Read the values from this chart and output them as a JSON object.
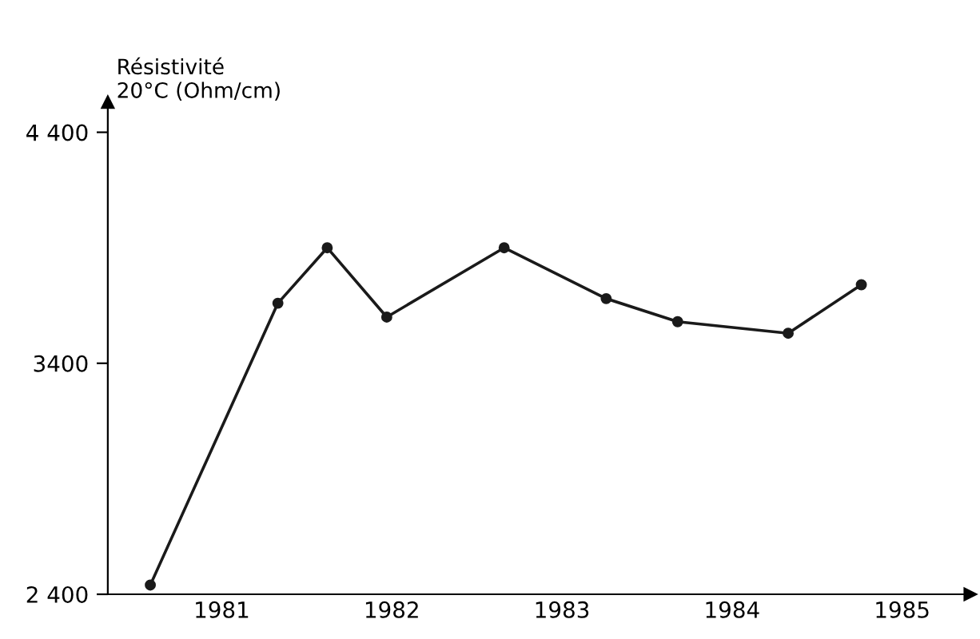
{
  "chart_data": {
    "type": "line",
    "ylabel": "Résistivité\n20°C (Ohm/cm)",
    "x": [
      1980.58,
      1981.33,
      1981.62,
      1981.97,
      1982.66,
      1983.26,
      1983.68,
      1984.33,
      1984.76
    ],
    "series": [
      {
        "color": "#1a1a1a",
        "values": [
          2440,
          3660,
          3900,
          3600,
          3900,
          3680,
          3580,
          3530,
          3740
        ]
      }
    ],
    "xlim": [
      1980.33,
      1985.4
    ],
    "ylim": [
      2400,
      4530
    ],
    "xticks": [
      1981,
      1982,
      1983,
      1984,
      1985
    ],
    "yticks": [
      {
        "value": 2400,
        "label": "2 400"
      },
      {
        "value": 3400,
        "label": "3400"
      },
      {
        "value": 4400,
        "label": "4 400"
      }
    ],
    "marker": "circle",
    "line_style": "solid",
    "grid": false,
    "legend": false
  }
}
